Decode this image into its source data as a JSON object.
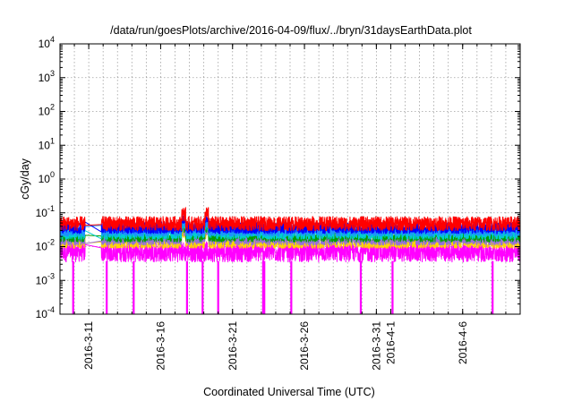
{
  "chart_data": {
    "type": "line",
    "title": "/data/run/goesPlots/archive/2016-04-09/flux/../bryn/31daysEarthData.plot",
    "xlabel": "Coordinated Universal Time (UTC)",
    "ylabel": "cGy/day",
    "yscale": "log",
    "ylim": [
      0.0001,
      10000
    ],
    "xlim": [
      "2016-03-09",
      "2016-04-10"
    ],
    "grid": true,
    "x_ticks": [
      "2016-3-11",
      "2016-3-16",
      "2016-3-21",
      "2016-3-26",
      "2016-3-31",
      "2016-4-1",
      "2016-4-6"
    ],
    "y_ticks": [
      {
        "base": "10",
        "exp": "-4",
        "value": 0.0001
      },
      {
        "base": "10",
        "exp": "-3",
        "value": 0.001
      },
      {
        "base": "10",
        "exp": "-2",
        "value": 0.01
      },
      {
        "base": "10",
        "exp": "-1",
        "value": 0.1
      },
      {
        "base": "10",
        "exp": "0",
        "value": 1
      },
      {
        "base": "10",
        "exp": "1",
        "value": 10
      },
      {
        "base": "10",
        "exp": "2",
        "value": 100
      },
      {
        "base": "10",
        "exp": "3",
        "value": 1000
      },
      {
        "base": "10",
        "exp": "4",
        "value": 10000
      }
    ],
    "data_gap": [
      "2016-03-10T18:00",
      "2016-03-11T21:00"
    ],
    "series": [
      {
        "color": "#ff0000",
        "level": 0.048,
        "spread": 0.42
      },
      {
        "color": "#0000ff",
        "level": 0.036,
        "spread": 0.35
      },
      {
        "color": "#1e90ff",
        "level": 0.03,
        "spread": 0.35
      },
      {
        "color": "#00ced1",
        "level": 0.024,
        "spread": 0.33
      },
      {
        "color": "#00a000",
        "level": 0.02,
        "spread": 0.33
      },
      {
        "color": "#9370db",
        "level": 0.016,
        "spread": 0.33
      },
      {
        "color": "#ffd700",
        "level": 0.013,
        "spread": 0.33
      },
      {
        "color": "#ff00ff",
        "level": 0.0075,
        "spread": 0.6
      }
    ],
    "dropouts": [
      "2016-03-09T22:00",
      "2016-03-12T06:00",
      "2016-03-14T03:00",
      "2016-03-17T20:00",
      "2016-03-18T22:00",
      "2016-03-20T00:00",
      "2016-03-23T03:00",
      "2016-03-23T05:00",
      "2016-03-25T02:00",
      "2016-03-29T22:00",
      "2016-04-01T03:00",
      "2016-04-08T02:00"
    ]
  }
}
